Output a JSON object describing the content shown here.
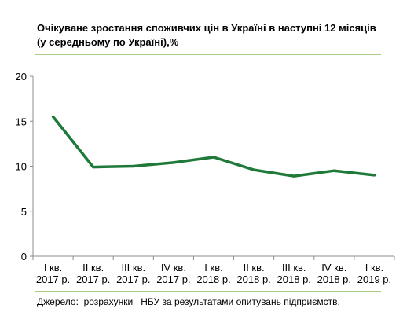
{
  "chart_data": {
    "type": "line",
    "title": "Очікуване зростання споживчих цін в Україні в наступні 12 місяців (у середньому по Україні),%",
    "categories": [
      [
        "I кв.",
        "2017 р."
      ],
      [
        "II кв.",
        "2017 р."
      ],
      [
        "III кв.",
        "2017 р."
      ],
      [
        "IV кв.",
        "2017 р."
      ],
      [
        "I кв.",
        "2018 р."
      ],
      [
        "II кв.",
        "2018 р."
      ],
      [
        "III кв.",
        "2018 р."
      ],
      [
        "IV кв.",
        "2018 р."
      ],
      [
        "I кв.",
        "2019 р."
      ]
    ],
    "series": [
      {
        "values": [
          15.5,
          9.9,
          10.0,
          10.4,
          11.0,
          9.6,
          8.9,
          9.5,
          9.0
        ],
        "color": "#1f7a3a"
      }
    ],
    "xlabel": "",
    "ylabel": "",
    "ylim": [
      0,
      20
    ],
    "yticks": [
      0,
      5,
      10,
      15,
      20
    ],
    "grid": false,
    "legend": "none",
    "source": "Джерело:  розрахунки   НБУ за результатами опитувань підприємств."
  }
}
